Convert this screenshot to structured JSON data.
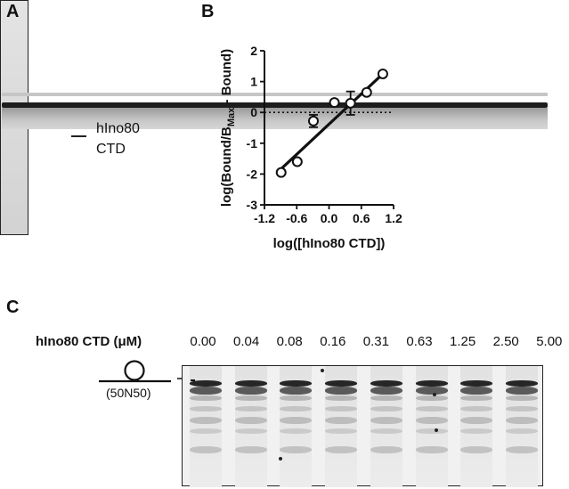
{
  "panels": {
    "a": "A",
    "b": "B",
    "c": "C"
  },
  "panel_a": {
    "band_label_line1": "hIno80",
    "band_label_line2": "CTD"
  },
  "panel_c": {
    "row_label": "hIno80 CTD (μM)",
    "concentrations": [
      "0.00",
      "0.04",
      "0.08",
      "0.16",
      "0.31",
      "0.63",
      "1.25",
      "2.50",
      "5.00"
    ],
    "substrate_label": "(50N50)",
    "marker": "-"
  },
  "chart_data": {
    "type": "scatter",
    "xlabel": "log([hIno80 CTD])",
    "ylabel": "log(Bound/B",
    "ylabel_sub": "Max",
    "ylabel_end": " - Bound)",
    "xlim": [
      -1.2,
      1.2
    ],
    "ylim": [
      -3,
      2
    ],
    "xticks": [
      "-1.2",
      "-0.6",
      "0.0",
      "0.6",
      "1.2"
    ],
    "xtick_values": [
      -1.2,
      -0.6,
      0.0,
      0.6,
      1.2
    ],
    "yticks": [
      "-3",
      "-2",
      "-1",
      "0",
      "1",
      "2"
    ],
    "ytick_values": [
      -3,
      -2,
      -1,
      0,
      1,
      2
    ],
    "points": [
      {
        "x": -0.89,
        "y": -1.95
      },
      {
        "x": -0.59,
        "y": -1.6
      },
      {
        "x": -0.29,
        "y": -0.28,
        "err": 0.2
      },
      {
        "x": 0.1,
        "y": 0.32
      },
      {
        "x": 0.4,
        "y": 0.3,
        "err": 0.38
      },
      {
        "x": 0.7,
        "y": 0.65
      },
      {
        "x": 1.0,
        "y": 1.25
      }
    ],
    "fit_line": {
      "x": [
        -0.9,
        1.0
      ],
      "y": [
        -1.85,
        1.25
      ]
    },
    "reference_line_y": 0,
    "grid": false
  }
}
